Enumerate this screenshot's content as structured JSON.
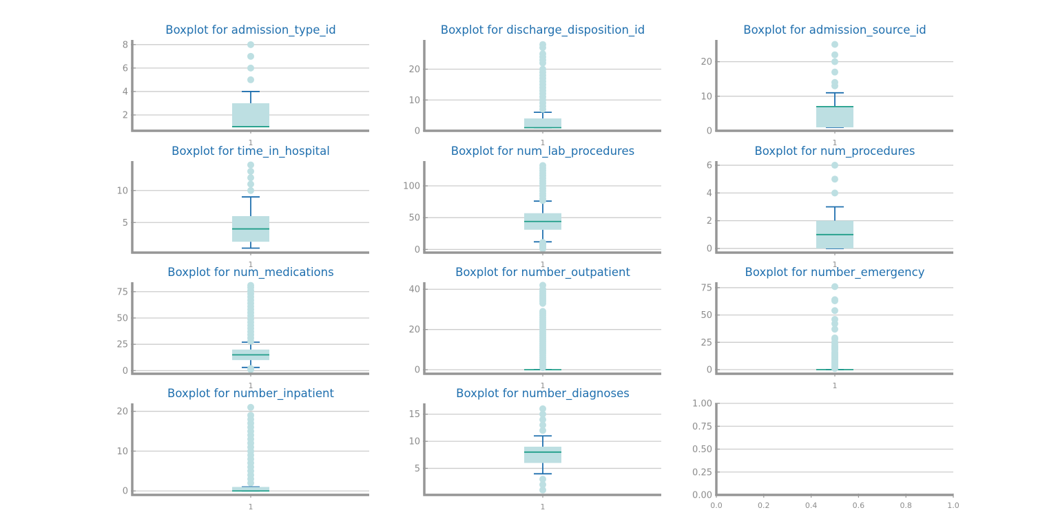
{
  "chart_data": [
    {
      "type": "boxplot",
      "title": "Boxplot for admission_type_id",
      "categories": [
        "1"
      ],
      "yticks": [
        2,
        4,
        6,
        8
      ],
      "ylim": [
        0.65,
        8.4
      ],
      "box": {
        "whisker_low": 1,
        "q1": 1,
        "median": 1,
        "q3": 3,
        "whisker_high": 4
      },
      "outliers": [
        5,
        6,
        7,
        8
      ]
    },
    {
      "type": "boxplot",
      "title": "Boxplot for discharge_disposition_id",
      "categories": [
        "1"
      ],
      "yticks": [
        0,
        10,
        20
      ],
      "ylim": [
        0,
        29.5
      ],
      "box": {
        "whisker_low": 1,
        "q1": 1,
        "median": 1,
        "q3": 4,
        "whisker_high": 6
      },
      "outliers": [
        7,
        8,
        9,
        10,
        11,
        12,
        13,
        14,
        15,
        16,
        17,
        18,
        19,
        20,
        22,
        23,
        24,
        25,
        27,
        28
      ]
    },
    {
      "type": "boxplot",
      "title": "Boxplot for admission_source_id",
      "categories": [
        "1"
      ],
      "yticks": [
        0,
        10,
        20
      ],
      "ylim": [
        0,
        26.3
      ],
      "box": {
        "whisker_low": 1,
        "q1": 1,
        "median": 7,
        "q3": 7,
        "whisker_high": 11
      },
      "outliers": [
        13,
        14,
        17,
        20,
        22,
        25
      ]
    },
    {
      "type": "boxplot",
      "title": "Boxplot for time_in_hospital",
      "categories": [
        "1"
      ],
      "yticks": [
        5,
        10
      ],
      "ylim": [
        0.3,
        14.6
      ],
      "box": {
        "whisker_low": 1,
        "q1": 2,
        "median": 4,
        "q3": 6,
        "whisker_high": 9
      },
      "outliers": [
        10,
        11,
        12,
        13,
        14
      ]
    },
    {
      "type": "boxplot",
      "title": "Boxplot for num_lab_procedures",
      "categories": [
        "1"
      ],
      "yticks": [
        0,
        50,
        100
      ],
      "ylim": [
        -5,
        139
      ],
      "box": {
        "whisker_low": 12,
        "q1": 31,
        "median": 44,
        "q3": 57,
        "whisker_high": 76
      },
      "outliers": [
        1,
        2,
        3,
        4,
        5,
        6,
        7,
        8,
        9,
        10,
        11,
        77,
        80,
        84,
        88,
        92,
        96,
        100,
        104,
        108,
        112,
        116,
        120,
        124,
        128,
        132
      ]
    },
    {
      "type": "boxplot",
      "title": "Boxplot for num_procedures",
      "categories": [
        "1"
      ],
      "yticks": [
        0,
        2,
        4,
        6
      ],
      "ylim": [
        -0.3,
        6.3
      ],
      "box": {
        "whisker_low": 0,
        "q1": 0,
        "median": 1,
        "q3": 2,
        "whisker_high": 3
      },
      "outliers": [
        4,
        5,
        6
      ]
    },
    {
      "type": "boxplot",
      "title": "Boxplot for num_medications",
      "categories": [
        "1"
      ],
      "yticks": [
        0,
        25,
        50,
        75
      ],
      "ylim": [
        -3,
        84
      ],
      "box": {
        "whisker_low": 3,
        "q1": 10,
        "median": 15,
        "q3": 20,
        "whisker_high": 27
      },
      "outliers": [
        1,
        2,
        28,
        31,
        34,
        37,
        40,
        43,
        46,
        49,
        52,
        55,
        58,
        61,
        64,
        67,
        70,
        73,
        76,
        79,
        81
      ]
    },
    {
      "type": "boxplot",
      "title": "Boxplot for number_outpatient",
      "categories": [
        "1"
      ],
      "yticks": [
        0,
        20,
        40
      ],
      "ylim": [
        -2,
        43.5
      ],
      "box": {
        "whisker_low": 0,
        "q1": 0,
        "median": 0,
        "q3": 0,
        "whisker_high": 0
      },
      "outliers": [
        1,
        2,
        3,
        4,
        5,
        6,
        7,
        8,
        9,
        10,
        11,
        12,
        13,
        14,
        15,
        16,
        17,
        18,
        19,
        20,
        21,
        22,
        23,
        24,
        25,
        26,
        27,
        28,
        29,
        33,
        34,
        35,
        36,
        37,
        38,
        39,
        40,
        42
      ]
    },
    {
      "type": "boxplot",
      "title": "Boxplot for number_emergency",
      "categories": [
        "1"
      ],
      "yticks": [
        0,
        25,
        50,
        75
      ],
      "ylim": [
        -3.8,
        80
      ],
      "box": {
        "whisker_low": 0,
        "q1": 0,
        "median": 0,
        "q3": 0,
        "whisker_high": 0
      },
      "outliers": [
        1,
        2,
        3,
        4,
        5,
        6,
        7,
        8,
        9,
        10,
        11,
        12,
        13,
        14,
        15,
        16,
        18,
        19,
        20,
        21,
        22,
        24,
        25,
        28,
        29,
        37,
        42,
        46,
        54,
        63,
        64,
        76
      ]
    },
    {
      "type": "boxplot",
      "title": "Boxplot for number_inpatient",
      "categories": [
        "1"
      ],
      "yticks": [
        0,
        10,
        20
      ],
      "ylim": [
        -1,
        22
      ],
      "box": {
        "whisker_low": 0,
        "q1": 0,
        "median": 0,
        "q3": 1,
        "whisker_high": 1
      },
      "outliers": [
        2,
        3,
        4,
        5,
        6,
        7,
        8,
        9,
        10,
        11,
        12,
        13,
        14,
        15,
        16,
        17,
        18,
        19,
        21
      ]
    },
    {
      "type": "boxplot",
      "title": "Boxplot for number_diagnoses",
      "categories": [
        "1"
      ],
      "yticks": [
        5,
        10,
        15
      ],
      "ylim": [
        0.1,
        17
      ],
      "box": {
        "whisker_low": 4,
        "q1": 6,
        "median": 8,
        "q3": 9,
        "whisker_high": 11
      },
      "outliers": [
        1,
        2,
        3,
        12,
        13,
        14,
        15,
        16
      ]
    },
    {
      "type": "empty",
      "title": "",
      "xticks": [
        "0.0",
        "0.2",
        "0.4",
        "0.6",
        "0.8",
        "1.0"
      ],
      "yticks": [
        "0.00",
        "0.25",
        "0.50",
        "0.75",
        "1.00"
      ],
      "xlim": [
        0,
        1
      ],
      "ylim": [
        0,
        1
      ]
    }
  ],
  "colors": {
    "title": "#1f6fae",
    "grid": "#cccccc",
    "spine": "#969696",
    "tick_label": "#8c8c8c",
    "box_fill": "#bddfe2",
    "whisker": "#1f6fae",
    "median": "#1f9e89",
    "outlier": "#bddfe2"
  }
}
